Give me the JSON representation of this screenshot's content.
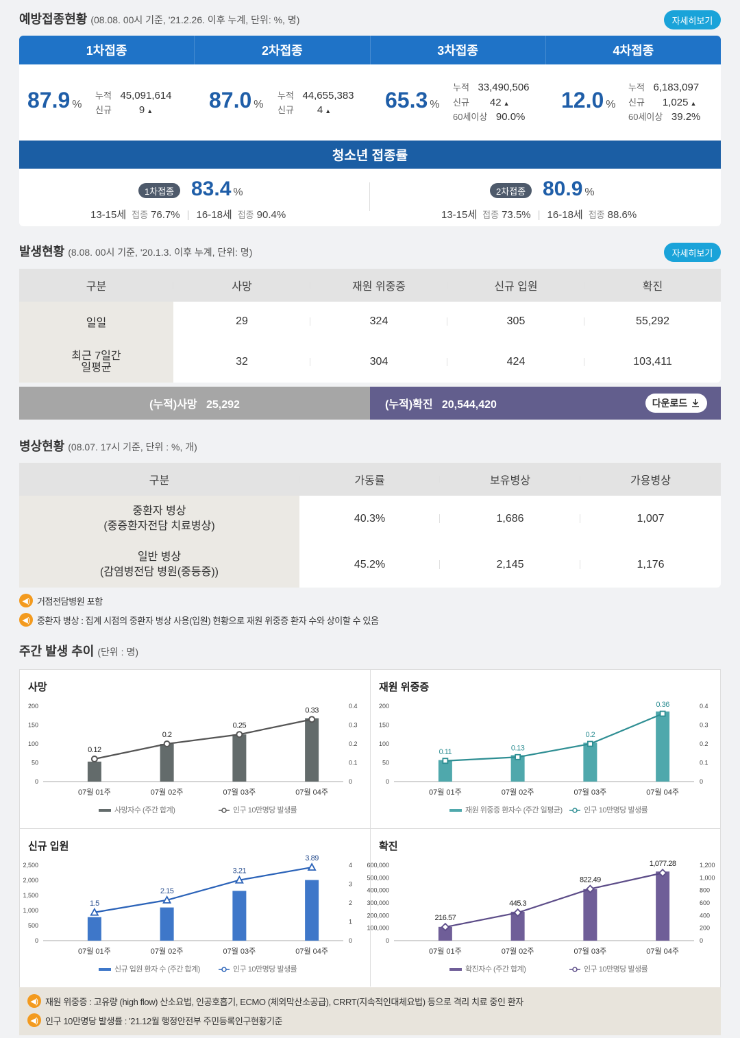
{
  "vaccination": {
    "title": "예방접종현황",
    "subtitle": "(08.08. 00시 기준, '21.2.26. 이후 누계, 단위: %, 명)",
    "more_label": "자세히보기",
    "doses": [
      {
        "label": "1차접종",
        "pct": "87.9",
        "unit": "%",
        "cum_label": "누적",
        "cum": "45,091,614",
        "new_label": "신규",
        "new": "9"
      },
      {
        "label": "2차접종",
        "pct": "87.0",
        "unit": "%",
        "cum_label": "누적",
        "cum": "44,655,383",
        "new_label": "신규",
        "new": "4"
      },
      {
        "label": "3차접종",
        "pct": "65.3",
        "unit": "%",
        "cum_label": "누적",
        "cum": "33,490,506",
        "new_label": "신규",
        "new": "42",
        "age_label": "60세이상",
        "age_value": "90.0%"
      },
      {
        "label": "4차접종",
        "pct": "12.0",
        "unit": "%",
        "cum_label": "누적",
        "cum": "6,183,097",
        "new_label": "신규",
        "new": "1,025",
        "age_label": "60세이상",
        "age_value": "39.2%"
      }
    ],
    "youth": {
      "title": "청소년 접종률",
      "items": [
        {
          "badge": "1차접종",
          "pct": "83.4",
          "unit": "%",
          "g1": "13-15세",
          "g1_lbl": "접종",
          "g1_val": "76.7%",
          "g2": "16-18세",
          "g2_lbl": "접종",
          "g2_val": "90.4%"
        },
        {
          "badge": "2차접종",
          "pct": "80.9",
          "unit": "%",
          "g1": "13-15세",
          "g1_lbl": "접종",
          "g1_val": "73.5%",
          "g2": "16-18세",
          "g2_lbl": "접종",
          "g2_val": "88.6%"
        }
      ]
    }
  },
  "occurrence": {
    "title": "발생현황",
    "subtitle": "(8.08. 00시 기준, '20.1.3. 이후 누계, 단위: 명)",
    "more_label": "자세히보기",
    "headers": [
      "구분",
      "사망",
      "재원 위중증",
      "신규 입원",
      "확진"
    ],
    "rows": [
      {
        "label": "일일",
        "values": [
          "29",
          "324",
          "305",
          "55,292"
        ]
      },
      {
        "label": "최근 7일간\n일평균",
        "values": [
          "32",
          "304",
          "424",
          "103,411"
        ]
      }
    ],
    "cum_death": "(누적)사망   25,292",
    "cum_confirmed": "(누적)확진   20,544,420",
    "download_label": "다운로드"
  },
  "beds": {
    "title": "병상현황",
    "subtitle": "(08.07. 17시 기준, 단위 : %, 개)",
    "headers": [
      "구분",
      "가동률",
      "보유병상",
      "가용병상"
    ],
    "rows": [
      {
        "label": "중환자 병상\n(중증환자전담 치료병상)",
        "values": [
          "40.3%",
          "1,686",
          "1,007"
        ]
      },
      {
        "label": "일반 병상\n(감염병전담 병원(중등증))",
        "values": [
          "45.2%",
          "2,145",
          "1,176"
        ]
      }
    ],
    "notes": [
      "거점전담병원 포함",
      "중환자 병상 : 집계 시점의 중환자 병상 사용(입원) 현황으로 재원 위중증 환자 수와 상이할 수 있음"
    ]
  },
  "weekly": {
    "title": "주간 발생 추이",
    "subtitle": "(단위 : 명)",
    "notes": [
      "재원 위중증 : 고유량 (high flow) 산소요법, 인공호흡기, ECMO (체외막산소공급), CRRT(지속적인대체요법) 등으로 격리 치료 중인 환자",
      "인구 10만명당 발생률 : '21.12월 행정안전부 주민등록인구현황기준"
    ]
  },
  "chart_data": [
    {
      "type": "bar",
      "title": "사망",
      "categories": [
        "07월 01주",
        "07월 02주",
        "07월 03주",
        "07월 04주"
      ],
      "series": [
        {
          "name": "사망자수 (주간 합계)",
          "values": [
            53,
            100,
            125,
            168
          ],
          "color": "#636b6b"
        },
        {
          "name": "인구 10만명당 발생률",
          "type": "line",
          "values": [
            0.12,
            0.2,
            0.25,
            0.33
          ],
          "color": "#555555"
        }
      ],
      "ylim": [
        0,
        200
      ],
      "y_ticks": [
        "0",
        "50",
        "100",
        "150",
        "200"
      ],
      "y2lim": [
        0,
        0.4
      ],
      "y2_ticks": [
        "0",
        "0.1",
        "0.2",
        "0.3",
        "0.4"
      ],
      "marker": "circle"
    },
    {
      "type": "bar",
      "title": "재원 위중증",
      "categories": [
        "07월 01주",
        "07월 02주",
        "07월 03주",
        "07월 04주"
      ],
      "series": [
        {
          "name": "재원 위중증 환자수 (주간 일평균)",
          "values": [
            57,
            70,
            103,
            186
          ],
          "color": "#4fa8ac"
        },
        {
          "name": "인구 10만명당 발생률",
          "type": "line",
          "values": [
            0.11,
            0.13,
            0.2,
            0.36
          ],
          "color": "#2e8e93"
        }
      ],
      "ylim": [
        0,
        200
      ],
      "y_ticks": [
        "0",
        "50",
        "100",
        "150",
        "200"
      ],
      "y2lim": [
        0,
        0.4
      ],
      "y2_ticks": [
        "0",
        "0.1",
        "0.2",
        "0.3",
        "0.4"
      ],
      "marker": "square"
    },
    {
      "type": "bar",
      "title": "신규 입원",
      "categories": [
        "07월 01주",
        "07월 02주",
        "07월 03주",
        "07월 04주"
      ],
      "series": [
        {
          "name": "신규 입원 환자 수 (주간 합계)",
          "values": [
            780,
            1100,
            1650,
            2010
          ],
          "color": "#3e77c9"
        },
        {
          "name": "인구 10만명당 발생률",
          "type": "line",
          "values": [
            1.5,
            2.15,
            3.21,
            3.89
          ],
          "color": "#2a62b8"
        }
      ],
      "ylim": [
        0,
        2500
      ],
      "y_ticks": [
        "0",
        "500",
        "1,000",
        "1,500",
        "2,000",
        "2,500"
      ],
      "y2lim": [
        0,
        4
      ],
      "y2_ticks": [
        "0",
        "1",
        "2",
        "3",
        "4"
      ],
      "marker": "triangle"
    },
    {
      "type": "bar",
      "title": "확진",
      "categories": [
        "07월 01주",
        "07월 02주",
        "07월 03주",
        "07월 04주"
      ],
      "series": [
        {
          "name": "확진자수 (주간 합계)",
          "values": [
            110000,
            230000,
            410000,
            550000
          ],
          "color": "#6f5e98"
        },
        {
          "name": "인구 10만명당 발생률",
          "type": "line",
          "values": [
            216.57,
            445.3,
            822.49,
            1077.28
          ],
          "color": "#5c4c88"
        }
      ],
      "ylim": [
        0,
        600000
      ],
      "y_ticks": [
        "0",
        "100,000",
        "200,000",
        "300,000",
        "400,000",
        "500,000",
        "600,000"
      ],
      "y2lim": [
        0,
        1200
      ],
      "y2_ticks": [
        "0",
        "200",
        "400",
        "600",
        "800",
        "1,000",
        "1,200"
      ],
      "marker": "diamond"
    }
  ]
}
